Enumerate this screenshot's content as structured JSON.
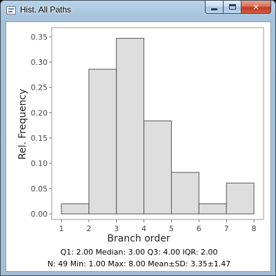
{
  "window": {
    "title": "Hist. All Paths",
    "colors": {
      "frame": "#a9c6df",
      "close": "#c94a31"
    }
  },
  "controls": {
    "minimize_icon": "minimize-icon",
    "maximize_icon": "maximize-icon",
    "close_icon": "close-icon",
    "close_glyph": "✕"
  },
  "chart_data": {
    "type": "bar",
    "xlabel": "Branch order",
    "ylabel": "Rel. Frequency",
    "bins": [
      {
        "from": 1,
        "to": 2,
        "value": 0.02
      },
      {
        "from": 2,
        "to": 3,
        "value": 0.286
      },
      {
        "from": 3,
        "to": 4,
        "value": 0.347
      },
      {
        "from": 4,
        "to": 5,
        "value": 0.184
      },
      {
        "from": 5,
        "to": 6,
        "value": 0.082
      },
      {
        "from": 6,
        "to": 7,
        "value": 0.02
      },
      {
        "from": 7,
        "to": 8,
        "value": 0.061
      }
    ],
    "xlim": [
      0.65,
      8.35
    ],
    "ylim": [
      0,
      0.36
    ],
    "x_ticks": [
      "1",
      "2",
      "3",
      "4",
      "5",
      "6",
      "7",
      "8"
    ],
    "y_ticks": [
      "0.00",
      "0.05",
      "0.10",
      "0.15",
      "0.20",
      "0.25",
      "0.30",
      "0.35"
    ],
    "grid": false,
    "bar_fill": "#dedede",
    "bar_stroke": "#555555"
  },
  "stats": {
    "line1": "Q1: 2.00  Median: 3.00  Q3: 4.00  IQR: 2.00",
    "line2": "N: 49  Min: 1.00  Max: 8.00  Mean±SD: 3.35±1.47"
  }
}
